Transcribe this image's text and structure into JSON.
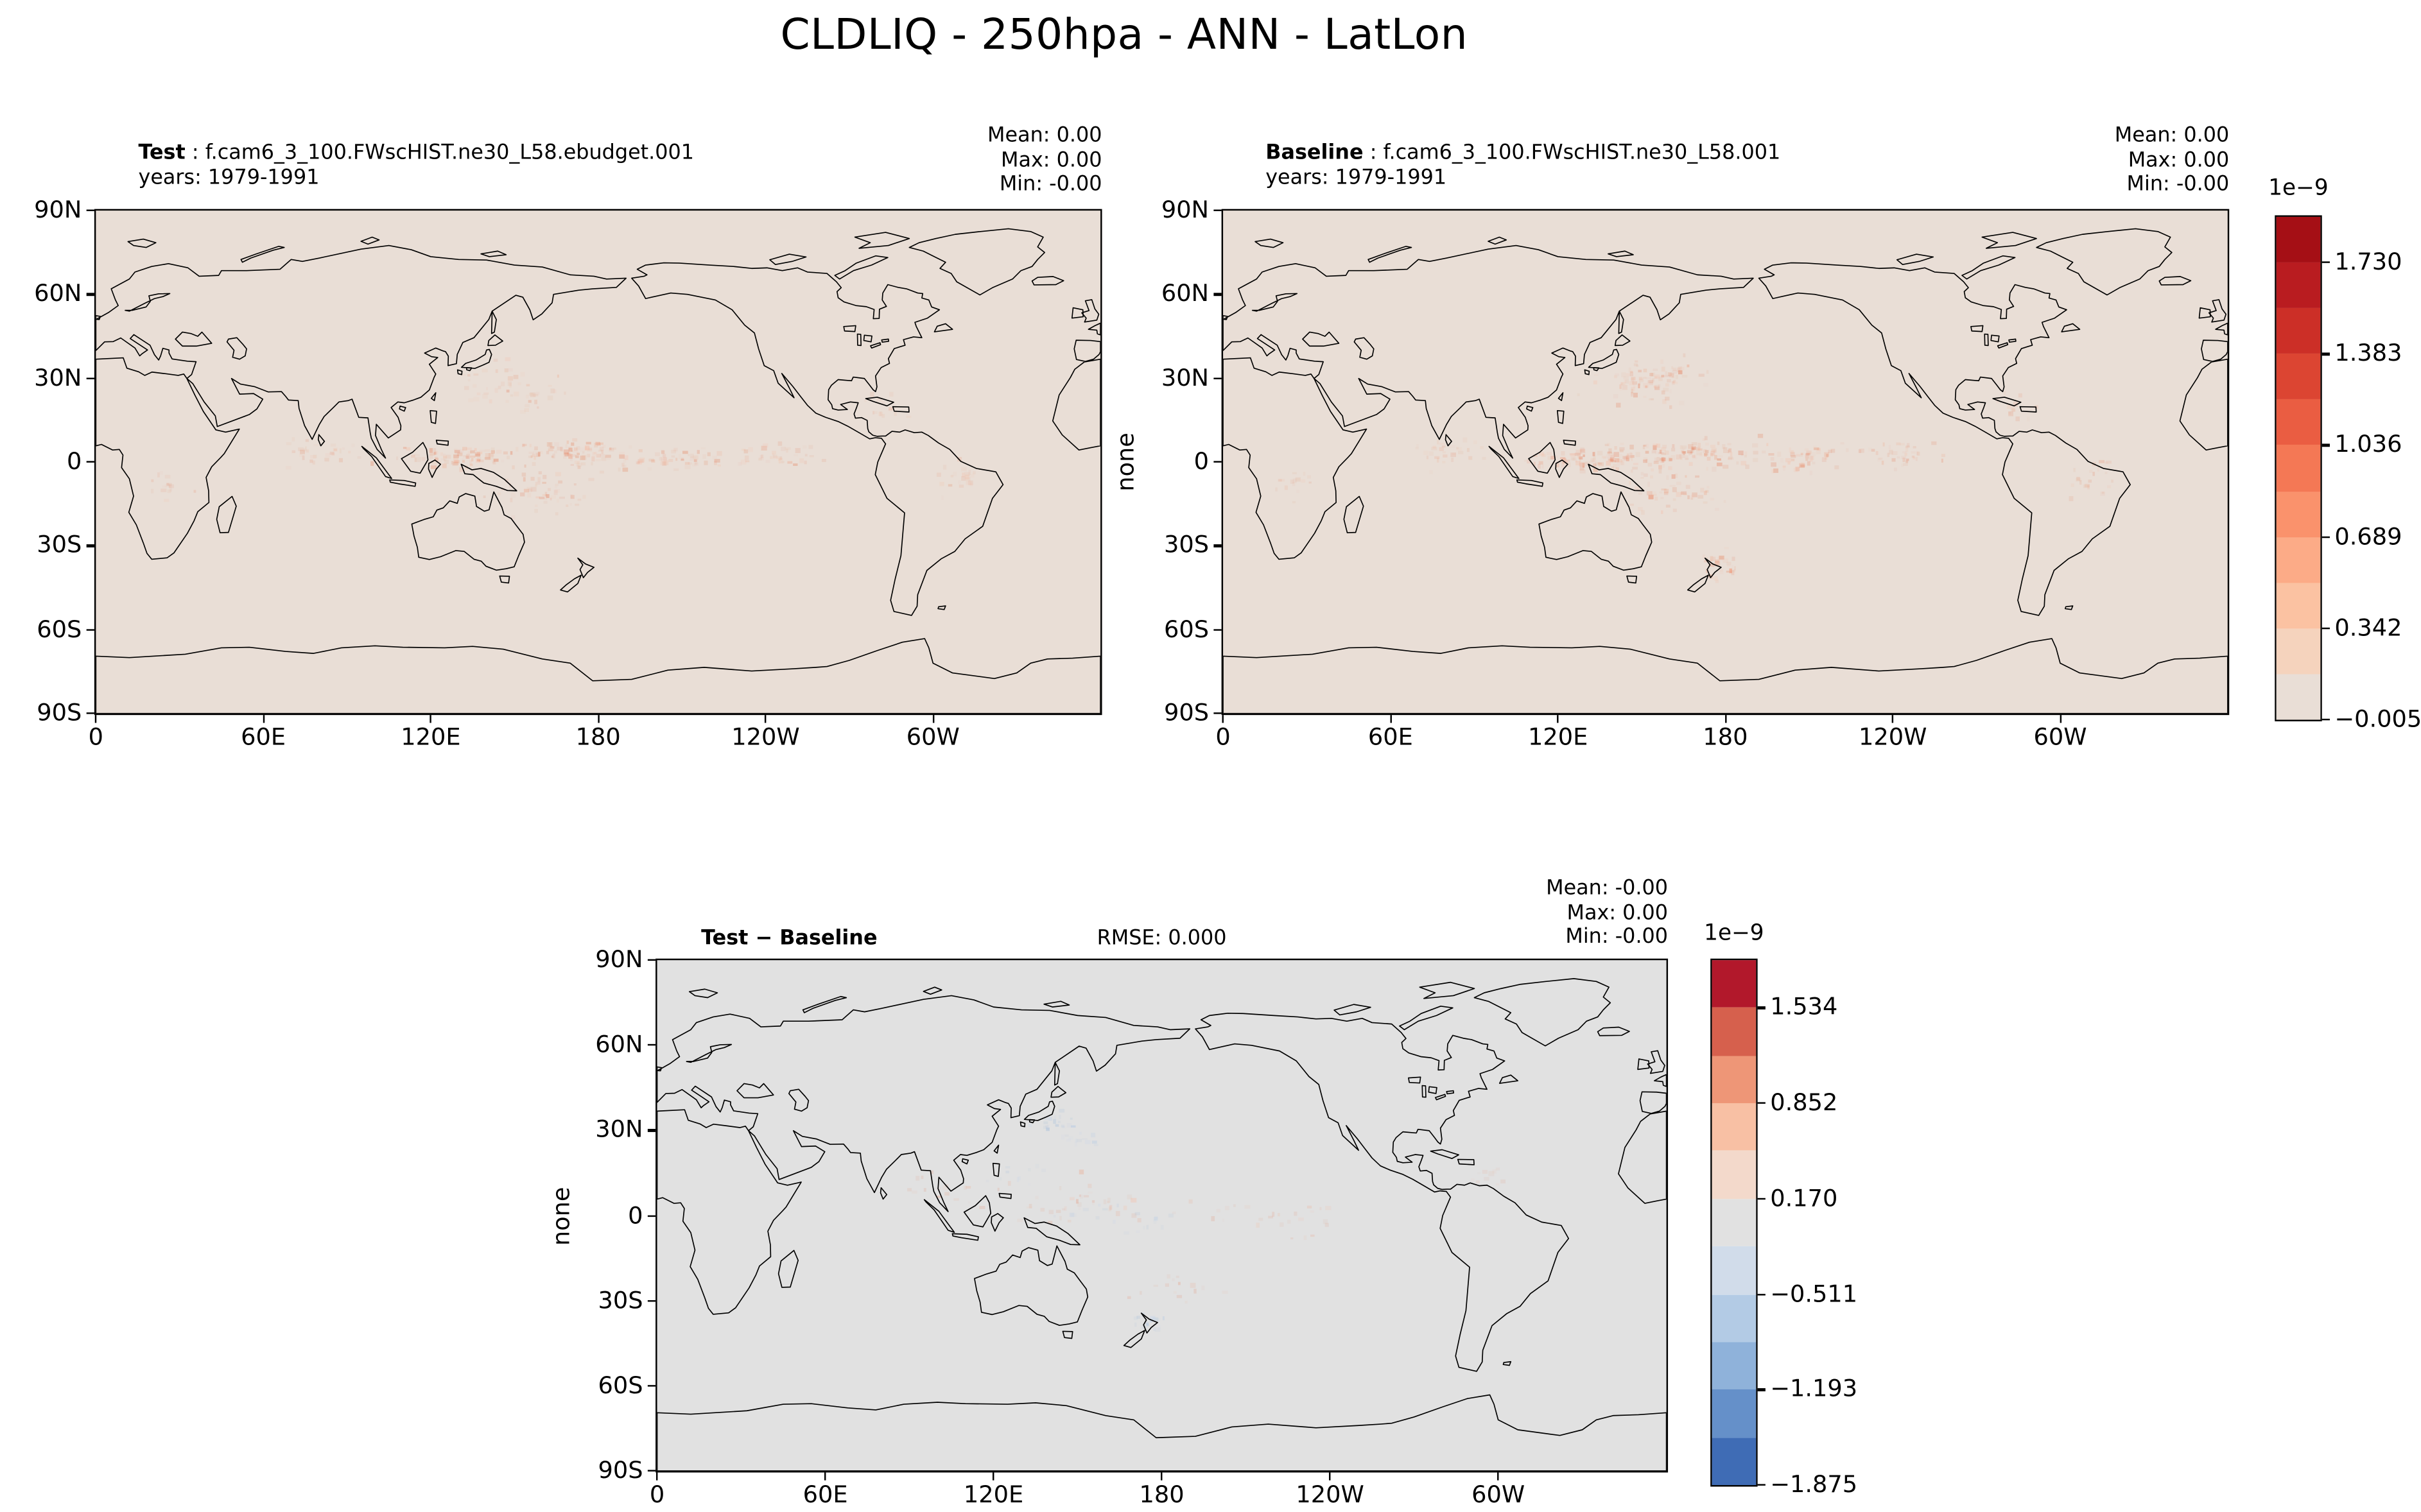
{
  "title": "CLDLIQ - 250hpa - ANN - LatLon",
  "axis": {
    "lat_ticks": [
      "90N",
      "60N",
      "30N",
      "0",
      "30S",
      "60S",
      "90S"
    ],
    "lon_ticks": [
      "0",
      "60E",
      "120E",
      "180",
      "120W",
      "60W"
    ]
  },
  "panels": [
    {
      "id": "test",
      "title_bold": "Test",
      "title_rest": " : f.cam6_3_100.FWscHIST.ne30_L58.ebudget.001",
      "subtitle": "years: 1979-1991",
      "stats": [
        "Mean: 0.00",
        "Max: 0.00",
        "Min: -0.00"
      ],
      "background": "#e9ded6"
    },
    {
      "id": "baseline",
      "title_bold": "Baseline",
      "title_rest": " : f.cam6_3_100.FWscHIST.ne30_L58.001",
      "subtitle": "years: 1979-1991",
      "ylabel": "none",
      "stats": [
        "Mean: 0.00",
        "Max: 0.00",
        "Min: -0.00"
      ],
      "background": "#e9ded6"
    },
    {
      "id": "diff",
      "title_bold": "Test − Baseline",
      "title_rest": "",
      "center_title": "RMSE: 0.000",
      "ylabel": "none",
      "stats": [
        "Mean: -0.00",
        "Max: 0.00",
        "Min: -0.00"
      ],
      "background": "#e1e1e1"
    }
  ],
  "colorbars": [
    {
      "id": "main",
      "offset_label": "1e−9",
      "tick_labels": [
        "1.730",
        "1.383",
        "1.036",
        "0.689",
        "0.342",
        "−0.005"
      ],
      "tick_values": [
        1.73,
        1.383,
        1.036,
        0.689,
        0.342,
        -0.005
      ],
      "vmin": -0.005,
      "vmax": 1.9035,
      "colors_top_to_bottom": [
        "#a50f15",
        "#b91c20",
        "#cc2f27",
        "#dc4532",
        "#ea5d42",
        "#f47855",
        "#fa926c",
        "#fcab87",
        "#fbc2a2",
        "#f5d3bd",
        "#e9ded6"
      ]
    },
    {
      "id": "diff",
      "offset_label": "1e−9",
      "tick_labels": [
        "1.534",
        "0.852",
        "0.170",
        "−0.511",
        "−1.193",
        "−1.875"
      ],
      "tick_values": [
        1.534,
        0.852,
        0.17,
        -0.511,
        -1.193,
        -1.875
      ],
      "vmin": -1.875,
      "vmax": 1.876,
      "colors_top_to_bottom": [
        "#b2182b",
        "#d6604d",
        "#ee9677",
        "#f8c0a4",
        "#f3d9cb",
        "#e1e1e1",
        "#d1dcea",
        "#b3cbe5",
        "#8fb2da",
        "#6590c9",
        "#3f6cb5"
      ]
    }
  ],
  "chart_data": [
    {
      "type": "heatmap",
      "panel": "Test",
      "title": "Test : f.cam6_3_100.FWscHIST.ne30_L58.ebudget.001",
      "subtitle": "years: 1979-1991",
      "variable": "CLDLIQ",
      "pressure_level": "250hpa",
      "season": "ANN",
      "projection": "lat-lon world map, longitudes 0 to 360 centered on 180, latitudes 90S to 90N, coastlines drawn",
      "units": "none",
      "scale_factor": "1e-9",
      "stats": {
        "mean": 0.0,
        "max": 0.0,
        "min": -0.0
      },
      "x_ticks": [
        "0",
        "60E",
        "120E",
        "180",
        "120W",
        "60W"
      ],
      "y_ticks": [
        "90N",
        "60N",
        "30N",
        "0",
        "30S",
        "60S",
        "90S"
      ],
      "colormap": "white-beige to dark red, 11 discrete levels",
      "colorbar_ticks": [
        -0.005,
        0.342,
        0.689,
        1.036,
        1.383,
        1.73
      ],
      "value_range": [
        -0.005,
        1.9035
      ],
      "pattern": "field is approximately zero everywhere; faint positive cloud liquid speckle along the tropical Pacific ITCZ/SPCZ, NW Pacific and Indian Ocean"
    },
    {
      "type": "heatmap",
      "panel": "Baseline",
      "title": "Baseline : f.cam6_3_100.FWscHIST.ne30_L58.001",
      "subtitle": "years: 1979-1991",
      "variable": "CLDLIQ",
      "pressure_level": "250hpa",
      "season": "ANN",
      "projection": "lat-lon world map, longitudes 0 to 360 centered on 180, latitudes 90S to 90N, coastlines drawn",
      "units": "none",
      "scale_factor": "1e-9",
      "stats": {
        "mean": 0.0,
        "max": 0.0,
        "min": -0.0
      },
      "x_ticks": [
        "0",
        "60E",
        "120E",
        "180",
        "120W",
        "60W"
      ],
      "y_ticks": [
        "90N",
        "60N",
        "30N",
        "0",
        "30S",
        "60S",
        "90S"
      ],
      "colormap": "white-beige to dark red, 11 discrete levels (shared colorbar with Test)",
      "colorbar_ticks": [
        -0.005,
        0.342,
        0.689,
        1.036,
        1.383,
        1.73
      ],
      "value_range": [
        -0.005,
        1.9035
      ],
      "pattern": "similar to Test but slightly stronger speckle, notably near New Zealand and the NW Pacific around 30N"
    },
    {
      "type": "heatmap",
      "panel": "Test − Baseline",
      "title": "Test − Baseline",
      "annotation": "RMSE: 0.000",
      "variable": "CLDLIQ difference",
      "units": "none",
      "scale_factor": "1e-9",
      "stats": {
        "mean": -0.0,
        "max": 0.0,
        "min": -0.0
      },
      "x_ticks": [
        "0",
        "60E",
        "120E",
        "180",
        "120W",
        "60W"
      ],
      "y_ticks": [
        "90N",
        "60N",
        "30N",
        "0",
        "30S",
        "60S",
        "90S"
      ],
      "colormap": "diverging blue-grey-red, 11 discrete levels",
      "colorbar_ticks": [
        1.534,
        0.852,
        0.17,
        -0.511,
        -1.193,
        -1.875
      ],
      "value_range": [
        -1.875,
        1.876
      ],
      "pattern": "differences approximately zero; scattered weak positive (red) and negative (blue) specks, e.g. blue clusters near Japan and New Zealand, faint red/blue mix across tropical Pacific"
    }
  ]
}
